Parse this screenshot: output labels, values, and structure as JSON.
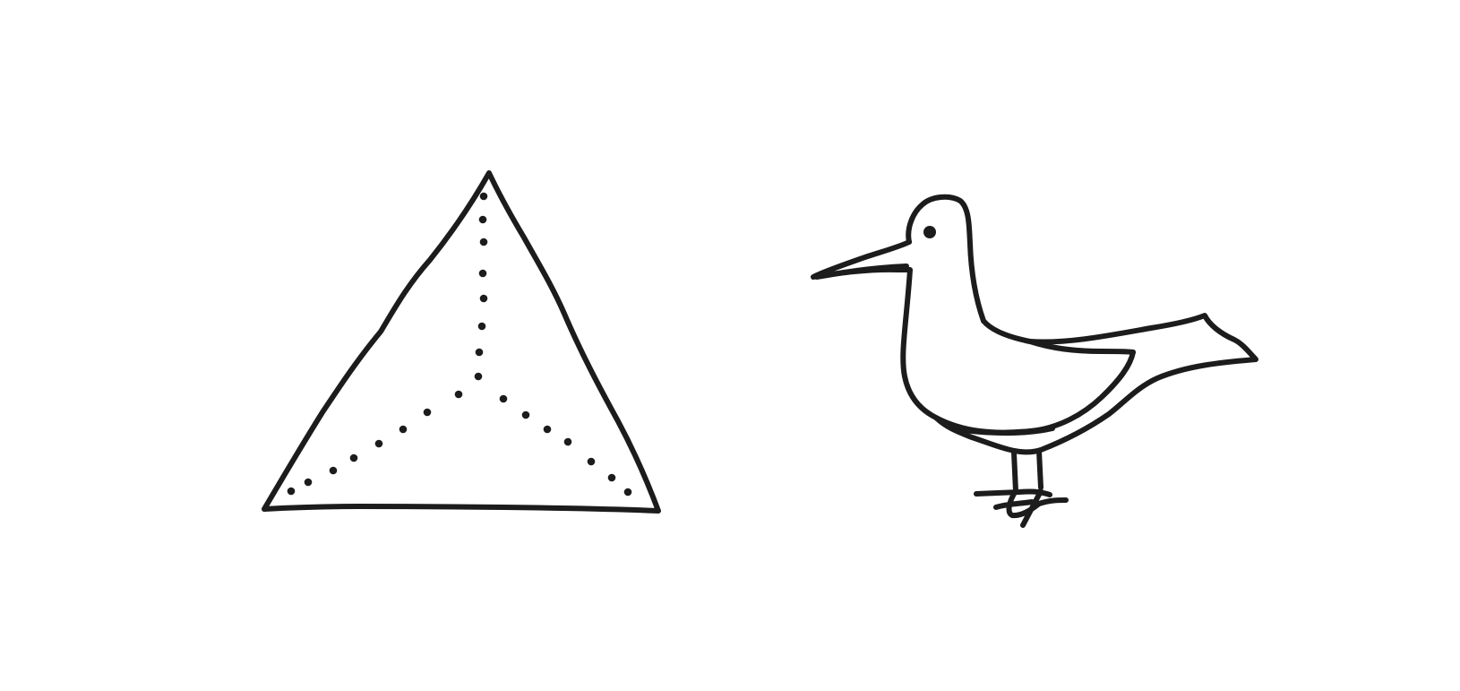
{
  "drawings": [
    {
      "icon": "triangle-with-dotted-medians-icon",
      "ink_color": "#1c1c1c"
    },
    {
      "icon": "seagull-icon",
      "ink_color": "#1c1c1c"
    }
  ],
  "background_color": "#ffffff"
}
